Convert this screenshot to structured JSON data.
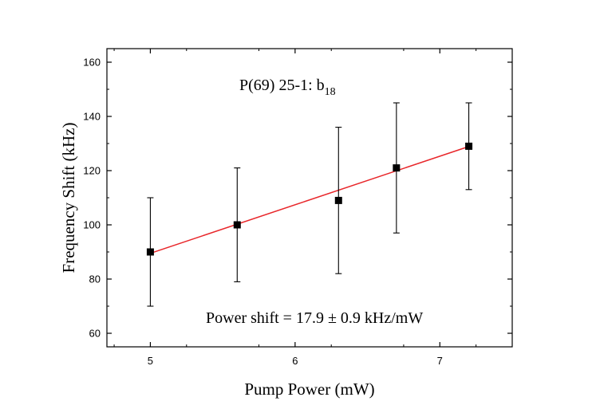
{
  "chart_data": {
    "type": "scatter",
    "title": "",
    "xlabel": "Pump Power (mW)",
    "ylabel": "Frequency Shift (kHz)",
    "xlim": [
      4.7,
      7.5
    ],
    "ylim": [
      55,
      165
    ],
    "xticks": [
      5,
      6,
      7
    ],
    "yticks": [
      60,
      80,
      100,
      120,
      140,
      160
    ],
    "xtick_labels": [
      "5",
      "6",
      "7"
    ],
    "ytick_labels": [
      "60",
      "80",
      "100",
      "120",
      "140",
      "160"
    ],
    "grid": false,
    "series": [
      {
        "name": "data",
        "marker": "square",
        "color": "#000000",
        "points": [
          {
            "x": 5.0,
            "y": 90,
            "y_err_low": 70,
            "y_err_high": 110
          },
          {
            "x": 5.6,
            "y": 100,
            "y_err_low": 79,
            "y_err_high": 121
          },
          {
            "x": 6.3,
            "y": 109,
            "y_err_low": 82,
            "y_err_high": 136
          },
          {
            "x": 6.7,
            "y": 121,
            "y_err_low": 97,
            "y_err_high": 145
          },
          {
            "x": 7.2,
            "y": 129,
            "y_err_low": 113,
            "y_err_high": 145
          }
        ]
      }
    ],
    "fit_line": {
      "color": "#e8262a",
      "x": [
        5.0,
        7.2
      ],
      "y": [
        89.5,
        128.9
      ]
    },
    "annotations": {
      "label_main": "P(69) 25-1: b",
      "label_sub": "18",
      "power_shift": "Power shift = 17.9 ± 0.9 kHz/mW"
    }
  }
}
